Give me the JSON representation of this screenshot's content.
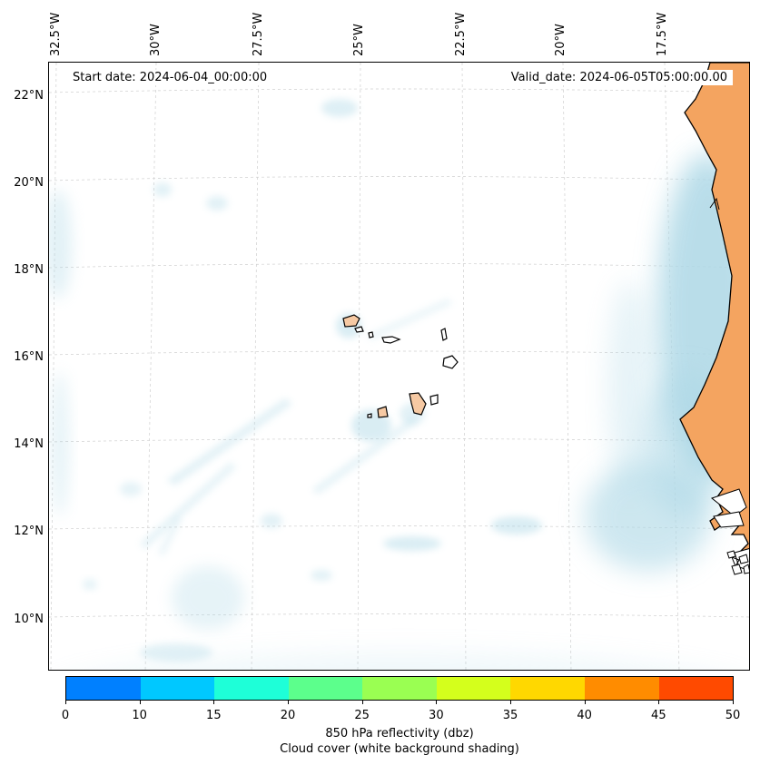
{
  "map": {
    "start_date": "Start date: 2024-06-04_00:00:00",
    "valid_date": "Valid_date: 2024-06-05T05:00:00.00",
    "lon_labels": [
      "32.5°W",
      "30°W",
      "27.5°W",
      "25°W",
      "22.5°W",
      "20°W",
      "17.5°W"
    ],
    "lat_labels": [
      "22°N",
      "20°N",
      "18°N",
      "16°N",
      "14°N",
      "12°N",
      "10°N"
    ],
    "land_color": "#f4a460",
    "island_color": "#f6c9a3",
    "cloud_color": "#add8e6",
    "region": "Cape Verde islands and West African coast"
  },
  "colorbar": {
    "ticks": [
      "0",
      "10",
      "15",
      "20",
      "25",
      "30",
      "35",
      "40",
      "45",
      "50"
    ],
    "colors": [
      "#0080ff",
      "#00c8ff",
      "#1effd8",
      "#5cff8c",
      "#9aff52",
      "#d4ff1c",
      "#ffd800",
      "#ff8c00",
      "#ff4a00"
    ],
    "label_line1": "850 hPa reflectivity (dbz)",
    "label_line2": "Cloud cover (white background shading)"
  }
}
